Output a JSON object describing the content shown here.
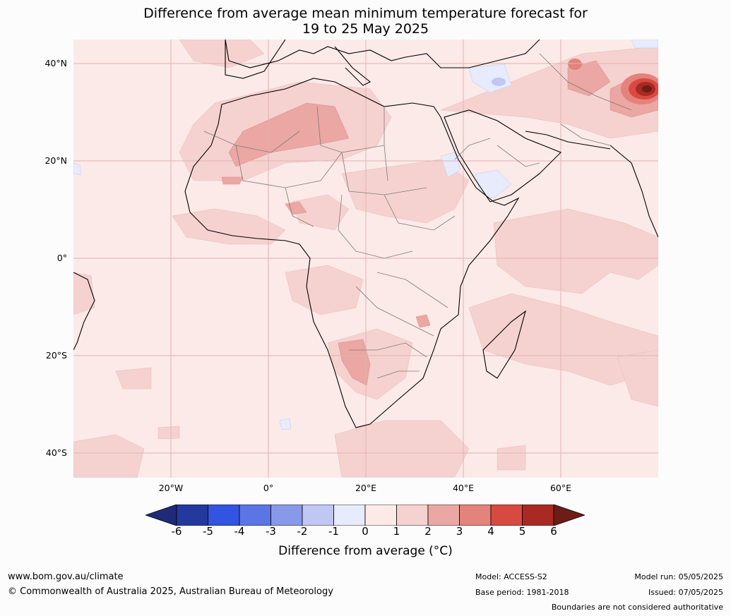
{
  "title": {
    "line1": "Difference from average mean minimum temperature forecast for",
    "line2": "19 to 25 May 2025"
  },
  "map": {
    "latitude_labels": [
      "40°N",
      "20°N",
      "0°",
      "20°S",
      "40°S"
    ],
    "longitude_labels": [
      "20°W",
      "0°",
      "20°E",
      "40°E",
      "60°E"
    ],
    "extent": {
      "lon_min": -40,
      "lon_max": 80,
      "lat_min": -45,
      "lat_max": 45
    }
  },
  "colorbar": {
    "ticks": [
      "-6",
      "-5",
      "-4",
      "-3",
      "-2",
      "-1",
      "0",
      "1",
      "2",
      "3",
      "4",
      "5",
      "6"
    ],
    "colors": [
      "#24399e",
      "#3354e0",
      "#5c75e4",
      "#8899ea",
      "#c0c7f3",
      "#e7ebfb",
      "#fbeae8",
      "#f5d2d0",
      "#eba7a3",
      "#e4827c",
      "#d84a40",
      "#a92a22"
    ],
    "under_color": "#1f2b78",
    "over_color": "#6e1d16",
    "label": "Difference from average (°C)"
  },
  "footer": {
    "website": "www.bom.gov.au/climate",
    "copyright": "© Commonwealth of Australia 2025, Australian Bureau of Meteorology",
    "model": "Model: ACCESS-S2",
    "base_period": "Base period: 1981-2018",
    "model_run": "Model run: 05/05/2025",
    "issued": "Issued: 07/05/2025",
    "disclaimer": "Boundaries are not considered authoritative"
  }
}
